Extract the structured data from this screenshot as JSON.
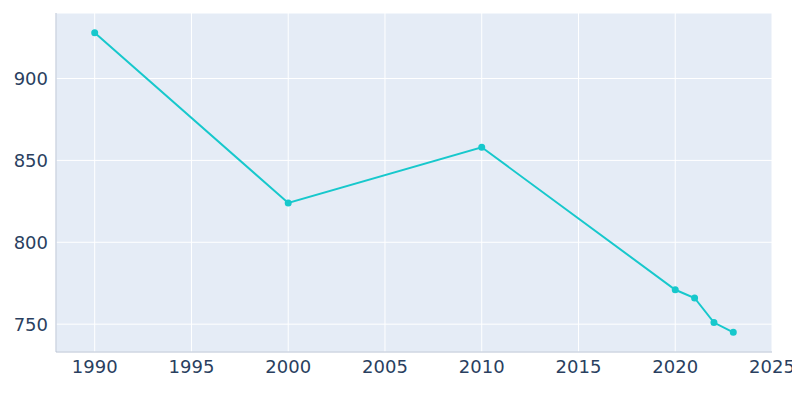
{
  "chart_data": {
    "type": "line",
    "x": [
      1990,
      2000,
      2010,
      2020,
      2021,
      2022,
      2023
    ],
    "values": [
      928,
      824,
      858,
      771,
      766,
      751,
      745
    ],
    "color": "#17c8cc",
    "marker": "circle",
    "xlim": [
      1988,
      2025
    ],
    "xticks": [
      1990,
      1995,
      2000,
      2005,
      2010,
      2015,
      2020,
      2025
    ],
    "ylim": [
      733,
      940
    ],
    "yticks": [
      750,
      800,
      850,
      900
    ],
    "grid": true
  }
}
